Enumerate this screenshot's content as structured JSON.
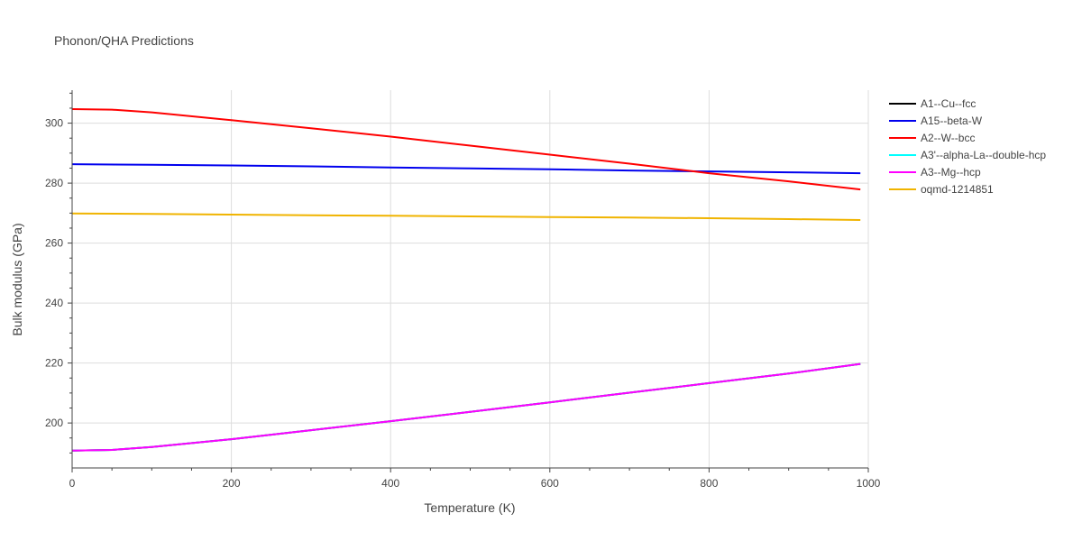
{
  "chart_data": {
    "type": "line",
    "title": "Phonon/QHA Predictions",
    "xlabel": "Temperature (K)",
    "ylabel": "Bulk modulus (GPa)",
    "xlim": [
      0,
      1000
    ],
    "ylim": [
      185,
      311
    ],
    "xticks": [
      0,
      200,
      400,
      600,
      800,
      1000
    ],
    "yticks": [
      200,
      220,
      240,
      260,
      280,
      300
    ],
    "grid": true,
    "legend_position": "top-right",
    "series": [
      {
        "name": "A1--Cu--fcc",
        "color": "#000000",
        "x": [
          0,
          50,
          100,
          200,
          300,
          400,
          500,
          600,
          700,
          800,
          900,
          990
        ],
        "y": [
          190.8,
          191.0,
          192.0,
          194.6,
          197.6,
          200.6,
          203.7,
          206.9,
          210.1,
          213.3,
          216.5,
          219.7
        ]
      },
      {
        "name": "A15--beta-W",
        "color": "#0000ee",
        "x": [
          0,
          100,
          200,
          300,
          400,
          500,
          600,
          700,
          800,
          900,
          990
        ],
        "y": [
          286.3,
          286.1,
          285.9,
          285.6,
          285.2,
          284.9,
          284.6,
          284.2,
          283.9,
          283.6,
          283.3
        ]
      },
      {
        "name": "A2--W--bcc",
        "color": "#ff0000",
        "x": [
          0,
          50,
          100,
          200,
          300,
          400,
          500,
          600,
          700,
          800,
          900,
          990
        ],
        "y": [
          304.7,
          304.5,
          303.6,
          301.0,
          298.3,
          295.5,
          292.5,
          289.5,
          286.5,
          283.3,
          280.6,
          277.9
        ]
      },
      {
        "name": "A3'--alpha-La--double-hcp",
        "color": "#00ffff",
        "x": [
          0,
          50,
          100,
          200,
          300,
          400,
          500,
          600,
          700,
          800,
          900,
          990
        ],
        "y": [
          190.8,
          191.0,
          192.0,
          194.6,
          197.6,
          200.6,
          203.7,
          206.9,
          210.1,
          213.3,
          216.5,
          219.7
        ]
      },
      {
        "name": "A3--Mg--hcp",
        "color": "#ff00ff",
        "x": [
          0,
          50,
          100,
          200,
          300,
          400,
          500,
          600,
          700,
          800,
          900,
          990
        ],
        "y": [
          190.8,
          191.0,
          192.0,
          194.6,
          197.6,
          200.6,
          203.7,
          206.9,
          210.1,
          213.3,
          216.5,
          219.7
        ]
      },
      {
        "name": "oqmd-1214851",
        "color": "#f0b400",
        "x": [
          0,
          100,
          200,
          300,
          400,
          500,
          600,
          700,
          800,
          900,
          990
        ],
        "y": [
          269.9,
          269.7,
          269.5,
          269.3,
          269.1,
          268.9,
          268.7,
          268.5,
          268.3,
          268.0,
          267.7
        ]
      }
    ]
  }
}
